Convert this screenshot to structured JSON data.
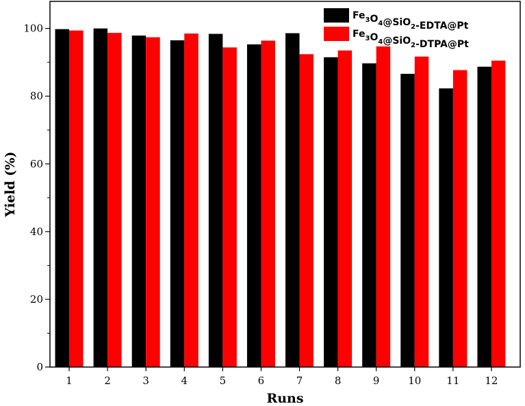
{
  "chart_data": {
    "type": "bar",
    "xlabel": "Runs",
    "ylabel": "Yield (%)",
    "categories": [
      "1",
      "2",
      "3",
      "4",
      "5",
      "6",
      "7",
      "8",
      "9",
      "10",
      "11",
      "12"
    ],
    "ylim": [
      0,
      108
    ],
    "yticks": [
      0,
      20,
      40,
      60,
      80,
      100
    ],
    "grid": false,
    "legend_position": "top-right",
    "series": [
      {
        "name": "Fe3O4@SiO2-EDTA@Pt",
        "name_parts": [
          {
            "text": "Fe",
            "sub": false
          },
          {
            "text": "3",
            "sub": true
          },
          {
            "text": "O",
            "sub": false
          },
          {
            "text": "4",
            "sub": true
          },
          {
            "text": "@SiO",
            "sub": false
          },
          {
            "text": "2",
            "sub": true
          },
          {
            "text": "-EDTA@Pt",
            "sub": false
          }
        ],
        "color": "#000000",
        "values": [
          99.8,
          100.0,
          97.9,
          96.5,
          98.4,
          95.3,
          98.6,
          91.5,
          89.7,
          86.6,
          82.3,
          88.7
        ]
      },
      {
        "name": "Fe3O4@SiO2-DTPA@Pt",
        "name_parts": [
          {
            "text": "Fe",
            "sub": false
          },
          {
            "text": "3",
            "sub": true
          },
          {
            "text": "O",
            "sub": false
          },
          {
            "text": "4",
            "sub": true
          },
          {
            "text": "@SiO",
            "sub": false
          },
          {
            "text": "2",
            "sub": true
          },
          {
            "text": "-DTPA@Pt",
            "sub": false
          }
        ],
        "color": "#ff0000",
        "values": [
          99.4,
          98.7,
          97.4,
          98.5,
          94.4,
          96.4,
          92.4,
          93.5,
          94.7,
          91.7,
          87.7,
          90.5
        ]
      }
    ]
  }
}
